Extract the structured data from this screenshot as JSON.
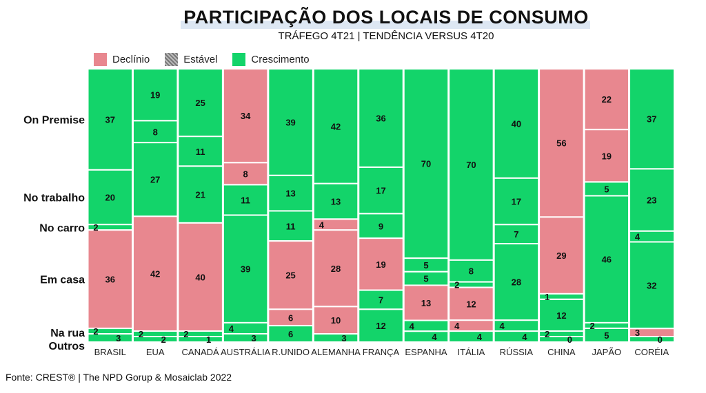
{
  "chart_data": {
    "type": "marimekko",
    "title": "PARTICIPAÇÃO DOS LOCAIS DE CONSUMO",
    "subtitle": "TRÁFEGO 4T21  |  TENDÊNCIA VERSUS 4T20",
    "source": "Fonte: CREST® | The NPD Gorup &  Mosaiclab 2022",
    "legend": [
      {
        "key": "decline",
        "label": "Declínio",
        "color": "#e8878f"
      },
      {
        "key": "stable",
        "label": "Estável",
        "color": "#999999"
      },
      {
        "key": "growth",
        "label": "Crescimento",
        "color": "#13d46a"
      }
    ],
    "row_labels": [
      "On Premise",
      "No trabalho",
      "No carro",
      "Em casa",
      "Na rua",
      "Outros"
    ],
    "countries": [
      {
        "name": "BRASIL",
        "segments": [
          {
            "category": "On Premise",
            "value": 37,
            "trend": "growth"
          },
          {
            "category": "No trabalho",
            "value": 20,
            "trend": "growth"
          },
          {
            "category": "No carro",
            "value": 2,
            "trend": "growth"
          },
          {
            "category": "Em casa",
            "value": 36,
            "trend": "decline"
          },
          {
            "category": "Na rua",
            "value": 2,
            "trend": "growth"
          },
          {
            "category": "Outros",
            "value": 3,
            "trend": "growth"
          }
        ]
      },
      {
        "name": "EUA",
        "segments": [
          {
            "category": "On Premise",
            "value": 19,
            "trend": "growth"
          },
          {
            "category": "On Premise",
            "value": 8,
            "trend": "growth"
          },
          {
            "category": "No trabalho",
            "value": 27,
            "trend": "growth"
          },
          {
            "category": "Em casa",
            "value": 42,
            "trend": "decline"
          },
          {
            "category": "Na rua",
            "value": 2,
            "trend": "growth"
          },
          {
            "category": "Outros",
            "value": 2,
            "trend": "growth"
          }
        ]
      },
      {
        "name": "CANADÁ",
        "segments": [
          {
            "category": "On Premise",
            "value": 25,
            "trend": "growth"
          },
          {
            "category": "On Premise",
            "value": 11,
            "trend": "growth"
          },
          {
            "category": "No trabalho",
            "value": 21,
            "trend": "growth"
          },
          {
            "category": "Em casa",
            "value": 40,
            "trend": "decline"
          },
          {
            "category": "Na rua",
            "value": 2,
            "trend": "growth"
          },
          {
            "category": "Outros",
            "value": 1,
            "trend": "growth"
          }
        ]
      },
      {
        "name": "AUSTRÁLIA",
        "segments": [
          {
            "category": "On Premise",
            "value": 34,
            "trend": "decline"
          },
          {
            "category": "On Premise",
            "value": 8,
            "trend": "decline"
          },
          {
            "category": "No trabalho",
            "value": 11,
            "trend": "growth"
          },
          {
            "category": "Em casa",
            "value": 39,
            "trend": "growth"
          },
          {
            "category": "Na rua",
            "value": 4,
            "trend": "growth"
          },
          {
            "category": "Outros",
            "value": 3,
            "trend": "growth"
          }
        ]
      },
      {
        "name": "R.UNIDO",
        "segments": [
          {
            "category": "On Premise",
            "value": 39,
            "trend": "growth"
          },
          {
            "category": "No trabalho",
            "value": 13,
            "trend": "growth"
          },
          {
            "category": "No carro",
            "value": 11,
            "trend": "growth"
          },
          {
            "category": "Em casa",
            "value": 25,
            "trend": "decline"
          },
          {
            "category": "Em casa",
            "value": 6,
            "trend": "decline"
          },
          {
            "category": "Na rua",
            "value": 6,
            "trend": "growth"
          }
        ]
      },
      {
        "name": "ALEMANHA",
        "segments": [
          {
            "category": "On Premise",
            "value": 42,
            "trend": "growth"
          },
          {
            "category": "No trabalho",
            "value": 13,
            "trend": "growth"
          },
          {
            "category": "No carro",
            "value": 4,
            "trend": "decline"
          },
          {
            "category": "Em casa",
            "value": 28,
            "trend": "decline"
          },
          {
            "category": "Na rua",
            "value": 10,
            "trend": "decline"
          },
          {
            "category": "Outros",
            "value": 3,
            "trend": "growth"
          }
        ]
      },
      {
        "name": "FRANÇA",
        "segments": [
          {
            "category": "On Premise",
            "value": 36,
            "trend": "growth"
          },
          {
            "category": "No trabalho",
            "value": 17,
            "trend": "growth"
          },
          {
            "category": "No carro",
            "value": 9,
            "trend": "growth"
          },
          {
            "category": "Em casa",
            "value": 19,
            "trend": "decline"
          },
          {
            "category": "Em casa",
            "value": 7,
            "trend": "growth"
          },
          {
            "category": "Na rua",
            "value": 12,
            "trend": "growth"
          }
        ]
      },
      {
        "name": "ESPANHA",
        "segments": [
          {
            "category": "On Premise",
            "value": 70,
            "trend": "growth"
          },
          {
            "category": "No carro",
            "value": 5,
            "trend": "growth"
          },
          {
            "category": "Em casa",
            "value": 5,
            "trend": "growth"
          },
          {
            "category": "Em casa",
            "value": 13,
            "trend": "decline"
          },
          {
            "category": "Na rua",
            "value": 4,
            "trend": "growth"
          },
          {
            "category": "Outros",
            "value": 4,
            "trend": "growth"
          }
        ]
      },
      {
        "name": "ITÁLIA",
        "segments": [
          {
            "category": "On Premise",
            "value": 70,
            "trend": "growth"
          },
          {
            "category": "No carro",
            "value": 8,
            "trend": "growth"
          },
          {
            "category": "Em casa",
            "value": 2,
            "trend": "growth"
          },
          {
            "category": "Em casa",
            "value": 12,
            "trend": "decline"
          },
          {
            "category": "Na rua",
            "value": 4,
            "trend": "decline"
          },
          {
            "category": "Outros",
            "value": 4,
            "trend": "growth"
          }
        ]
      },
      {
        "name": "RÚSSIA",
        "segments": [
          {
            "category": "On Premise",
            "value": 40,
            "trend": "growth"
          },
          {
            "category": "No trabalho",
            "value": 17,
            "trend": "growth"
          },
          {
            "category": "No carro",
            "value": 7,
            "trend": "growth"
          },
          {
            "category": "Em casa",
            "value": 28,
            "trend": "growth"
          },
          {
            "category": "Na rua",
            "value": 4,
            "trend": "growth"
          },
          {
            "category": "Outros",
            "value": 4,
            "trend": "growth"
          }
        ]
      },
      {
        "name": "CHINA",
        "segments": [
          {
            "category": "On Premise",
            "value": 56,
            "trend": "decline"
          },
          {
            "category": "Em casa",
            "value": 29,
            "trend": "decline"
          },
          {
            "category": "Em casa",
            "value": 1,
            "trend": "growth"
          },
          {
            "category": "Na rua",
            "value": 12,
            "trend": "growth"
          },
          {
            "category": "Outros",
            "value": 2,
            "trend": "growth"
          },
          {
            "category": "Outros",
            "value": 0,
            "trend": "growth"
          }
        ]
      },
      {
        "name": "JAPÃO",
        "segments": [
          {
            "category": "On Premise",
            "value": 22,
            "trend": "decline"
          },
          {
            "category": "On Premise",
            "value": 19,
            "trend": "decline"
          },
          {
            "category": "No trabalho",
            "value": 5,
            "trend": "growth"
          },
          {
            "category": "Em casa",
            "value": 46,
            "trend": "growth"
          },
          {
            "category": "Na rua",
            "value": 2,
            "trend": "growth"
          },
          {
            "category": "Outros",
            "value": 5,
            "trend": "growth"
          }
        ]
      },
      {
        "name": "CORÉIA",
        "segments": [
          {
            "category": "On Premise",
            "value": 37,
            "trend": "growth"
          },
          {
            "category": "No trabalho",
            "value": 23,
            "trend": "growth"
          },
          {
            "category": "No carro",
            "value": 4,
            "trend": "growth"
          },
          {
            "category": "Em casa",
            "value": 32,
            "trend": "growth"
          },
          {
            "category": "Na rua",
            "value": 3,
            "trend": "decline"
          },
          {
            "category": "Outros",
            "value": 0,
            "trend": "growth"
          }
        ]
      }
    ]
  }
}
